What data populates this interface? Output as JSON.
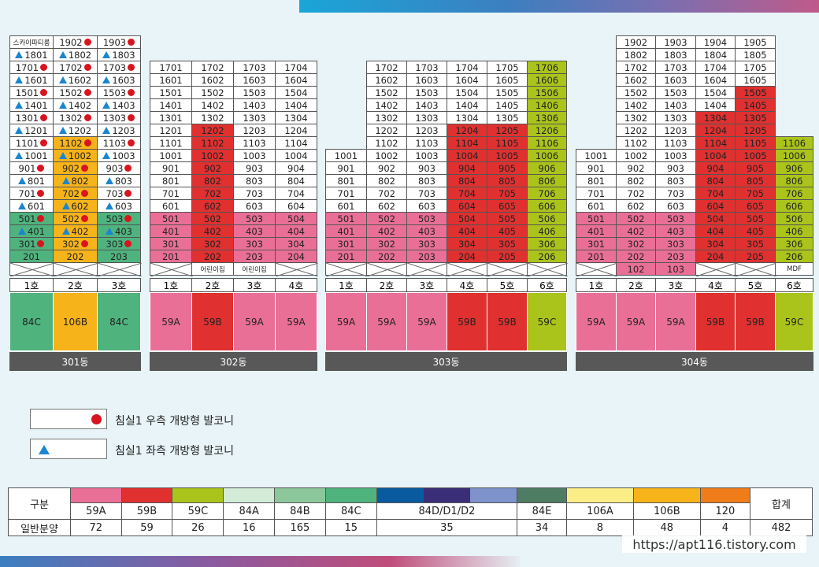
{
  "colors": {
    "59A": "#ea6f97",
    "59B": "#e03030",
    "59C": "#aac41b",
    "84A": "#d3ecd7",
    "84B": "#8cc79b",
    "84C": "#4fb37e",
    "84D1": "#0a5aa0",
    "84D2": "#3b2e78",
    "84D3": "#7e92cc",
    "84E": "#4f7d63",
    "106A": "#fbee86",
    "106B": "#f7b31a",
    "120": "#f07d1a",
    "white": "#ffffff"
  },
  "buildings": [
    {
      "name": "301동",
      "top_cells": [
        [
          {
            "t": "스카이파티룸"
          },
          {
            "t": "1902",
            "m": "dot"
          },
          {
            "t": "1903",
            "m": "dot"
          }
        ],
        [
          {
            "t": "1801",
            "m": "tri"
          },
          {
            "t": "1802",
            "m": "tri"
          },
          {
            "t": "1803",
            "m": "tri"
          }
        ],
        [
          {
            "t": "1701",
            "m": "dot"
          },
          {
            "t": "1702",
            "m": "dot"
          },
          {
            "t": "1703",
            "m": "dot"
          }
        ],
        [
          {
            "t": "1601",
            "m": "tri"
          },
          {
            "t": "1602",
            "m": "tri"
          },
          {
            "t": "1603",
            "m": "tri"
          }
        ],
        [
          {
            "t": "1501",
            "m": "dot"
          },
          {
            "t": "1502",
            "m": "dot"
          },
          {
            "t": "1503",
            "m": "dot"
          }
        ],
        [
          {
            "t": "1401",
            "m": "tri"
          },
          {
            "t": "1402",
            "m": "tri"
          },
          {
            "t": "1403",
            "m": "tri"
          }
        ],
        [
          {
            "t": "1301",
            "m": "dot"
          },
          {
            "t": "1302",
            "m": "dot"
          },
          {
            "t": "1303",
            "m": "dot"
          }
        ],
        [
          {
            "t": "1201",
            "m": "tri"
          },
          {
            "t": "1202",
            "m": "tri"
          },
          {
            "t": "1203",
            "m": "tri"
          }
        ],
        [
          {
            "t": "1101",
            "m": "dot"
          },
          {
            "t": "1102",
            "m": "dot",
            "c": "106B"
          },
          {
            "t": "1103",
            "m": "dot"
          }
        ],
        [
          {
            "t": "1001",
            "m": "tri"
          },
          {
            "t": "1002",
            "m": "tri",
            "c": "106B"
          },
          {
            "t": "1003",
            "m": "tri"
          }
        ],
        [
          {
            "t": "901",
            "m": "dot"
          },
          {
            "t": "902",
            "m": "dot",
            "c": "106B"
          },
          {
            "t": "903",
            "m": "dot"
          }
        ],
        [
          {
            "t": "801",
            "m": "tri"
          },
          {
            "t": "802",
            "m": "tri",
            "c": "106B"
          },
          {
            "t": "803",
            "m": "tri"
          }
        ],
        [
          {
            "t": "701",
            "m": "dot"
          },
          {
            "t": "702",
            "m": "dot",
            "c": "106B"
          },
          {
            "t": "703",
            "m": "dot"
          }
        ],
        [
          {
            "t": "601",
            "m": "tri"
          },
          {
            "t": "602",
            "m": "tri",
            "c": "106B"
          },
          {
            "t": "603",
            "m": "tri"
          }
        ],
        [
          {
            "t": "501",
            "m": "dot",
            "c": "84C"
          },
          {
            "t": "502",
            "m": "dot",
            "c": "106B"
          },
          {
            "t": "503",
            "m": "dot",
            "c": "84C"
          }
        ],
        [
          {
            "t": "401",
            "m": "tri",
            "c": "84C"
          },
          {
            "t": "402",
            "m": "tri",
            "c": "106B"
          },
          {
            "t": "403",
            "m": "tri",
            "c": "84C"
          }
        ],
        [
          {
            "t": "301",
            "m": "dot",
            "c": "84C"
          },
          {
            "t": "302",
            "m": "dot",
            "c": "106B"
          },
          {
            "t": "303",
            "m": "dot",
            "c": "84C"
          }
        ],
        [
          {
            "t": "201",
            "c": "84C"
          },
          {
            "t": "202",
            "c": "106B"
          },
          {
            "t": "203",
            "c": "84C"
          }
        ],
        [
          {
            "x": true
          },
          {
            "x": true
          },
          {
            "x": true
          }
        ]
      ],
      "units": [
        {
          "no": "1호",
          "type": "84C"
        },
        {
          "no": "2호",
          "type": "106B"
        },
        {
          "no": "3호",
          "type": "84C"
        }
      ]
    },
    {
      "name": "302동",
      "units": [
        {
          "no": "1호",
          "type": "59A"
        },
        {
          "no": "2호",
          "type": "59B"
        },
        {
          "no": "3호",
          "type": "59A"
        },
        {
          "no": "4호",
          "type": "59A"
        }
      ]
    },
    {
      "name": "303동",
      "units": [
        {
          "no": "1호",
          "type": "59A"
        },
        {
          "no": "2호",
          "type": "59A"
        },
        {
          "no": "3호",
          "type": "59A"
        },
        {
          "no": "4호",
          "type": "59B"
        },
        {
          "no": "5호",
          "type": "59B"
        },
        {
          "no": "6호",
          "type": "59C"
        }
      ]
    },
    {
      "name": "304동",
      "units": [
        {
          "no": "1호",
          "type": "59A"
        },
        {
          "no": "2호",
          "type": "59A"
        },
        {
          "no": "3호",
          "type": "59A"
        },
        {
          "no": "4호",
          "type": "59B"
        },
        {
          "no": "5호",
          "type": "59B"
        },
        {
          "no": "6호",
          "type": "59C"
        }
      ]
    }
  ],
  "b302_special": {
    "r202": "어린이집",
    "r203": "어린이집"
  },
  "b304_special": {
    "r102": "102",
    "r103": "103",
    "r106": "MDF"
  },
  "legend": {
    "right_open": "침실1 우측 개방형 발코니",
    "left_open": "침실1 좌측 개방형 발코니"
  },
  "summary": {
    "row1_label": "구분",
    "row2_label": "일반분양",
    "total_label": "합계",
    "types": [
      "59A",
      "59B",
      "59C",
      "84A",
      "84B",
      "84C",
      "84D/D1/D2",
      "84E",
      "106A",
      "106B",
      "120"
    ],
    "counts": [
      "72",
      "59",
      "26",
      "16",
      "165",
      "15",
      "35",
      "34",
      "8",
      "48",
      "4"
    ],
    "total": "482"
  },
  "watermark": "https://apt116.tistory.com"
}
